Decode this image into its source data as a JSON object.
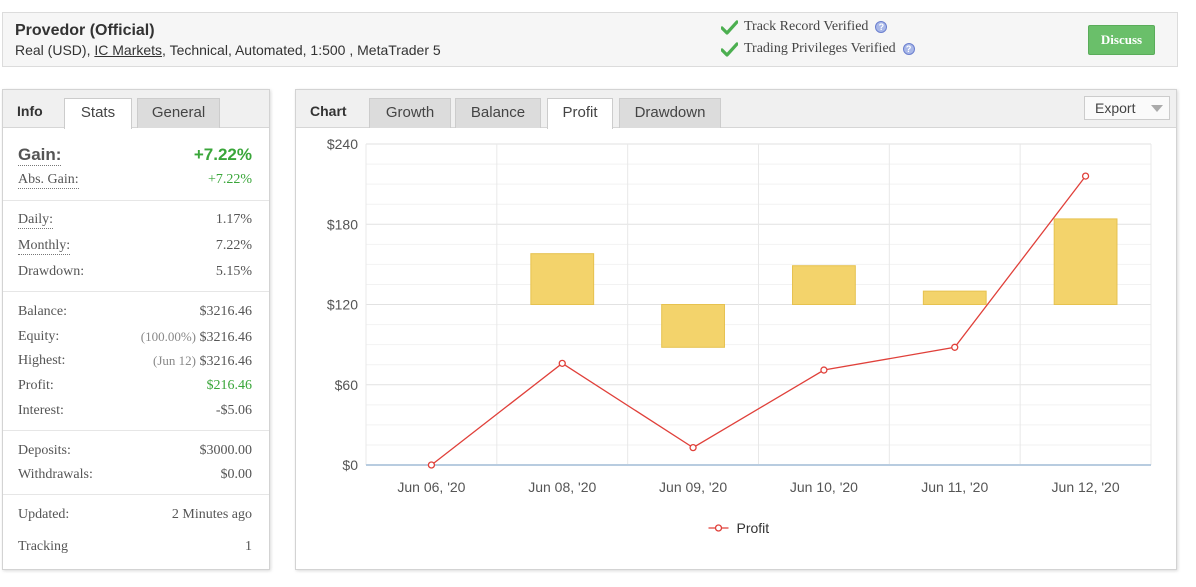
{
  "header": {
    "title": "Provedor (Official)",
    "sub_prefix": "Real (USD), ",
    "broker": "IC Markets",
    "sub_suffix": ", Technical, Automated, 1:500 , MetaTrader 5",
    "verify1": "Track Record Verified",
    "verify2": "Trading Privileges Verified",
    "discuss": "Discuss",
    "help": "?"
  },
  "left": {
    "tab_label": "Info",
    "tabs": [
      "Stats",
      "General"
    ],
    "gain_label": "Gain:",
    "gain_value": "+7.22%",
    "abs_gain_label": "Abs. Gain:",
    "abs_gain_value": "+7.22%",
    "daily_label": "Daily:",
    "daily_value": "1.17%",
    "monthly_label": "Monthly:",
    "monthly_value": "7.22%",
    "drawdown_label": "Drawdown:",
    "drawdown_value": "5.15%",
    "balance_label": "Balance:",
    "balance_value": "$3216.46",
    "equity_label": "Equity:",
    "equity_pct": "(100.00%)",
    "equity_value": "$3216.46",
    "highest_label": "Highest:",
    "highest_date": "(Jun 12)",
    "highest_value": "$3216.46",
    "profit_label": "Profit:",
    "profit_value": "$216.46",
    "interest_label": "Interest:",
    "interest_value": "-$5.06",
    "deposits_label": "Deposits:",
    "deposits_value": "$3000.00",
    "withdrawals_label": "Withdrawals:",
    "withdrawals_value": "$0.00",
    "updated_label": "Updated:",
    "updated_value": "2 Minutes ago",
    "tracking_label": "Tracking",
    "tracking_value": "1"
  },
  "right": {
    "tab_label": "Chart",
    "tabs": [
      "Growth",
      "Balance",
      "Profit",
      "Drawdown"
    ],
    "active_tab": "Profit",
    "export": "Export"
  },
  "colors": {
    "line": "#e0403a",
    "bar": "#f3d36b",
    "bar_border": "#e6c24f",
    "grid": "#e8e8e8",
    "axis": "#b8cce0"
  },
  "chart_data": {
    "type": "line",
    "categories": [
      "Jun 06, '20",
      "Jun 08, '20",
      "Jun 09, '20",
      "Jun 10, '20",
      "Jun 11, '20",
      "Jun 12, '20"
    ],
    "y_ticks": [
      "$0",
      "$60",
      "$120",
      "$180",
      "$240"
    ],
    "ylim": [
      0,
      240
    ],
    "series": [
      {
        "name": "Profit",
        "values": [
          0,
          76,
          13,
          71,
          88,
          216
        ]
      }
    ],
    "bars": [
      {
        "category": "Jun 08, '20",
        "low": 120,
        "high": 158
      },
      {
        "category": "Jun 09, '20",
        "low": 88,
        "high": 120
      },
      {
        "category": "Jun 10, '20",
        "low": 120,
        "high": 149
      },
      {
        "category": "Jun 11, '20",
        "low": 120,
        "high": 130
      },
      {
        "category": "Jun 12, '20",
        "low": 120,
        "high": 184
      }
    ],
    "legend": "bottom-center",
    "grid": true
  }
}
